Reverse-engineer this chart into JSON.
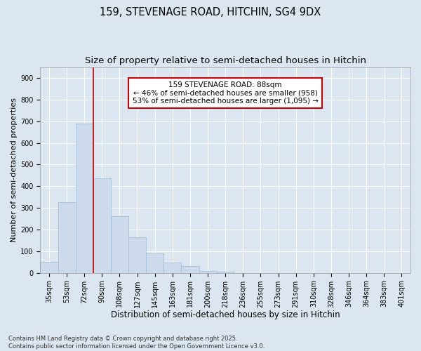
{
  "title1": "159, STEVENAGE ROAD, HITCHIN, SG4 9DX",
  "title2": "Size of property relative to semi-detached houses in Hitchin",
  "xlabel": "Distribution of semi-detached houses by size in Hitchin",
  "ylabel": "Number of semi-detached properties",
  "categories": [
    "35sqm",
    "53sqm",
    "72sqm",
    "90sqm",
    "108sqm",
    "127sqm",
    "145sqm",
    "163sqm",
    "181sqm",
    "200sqm",
    "218sqm",
    "236sqm",
    "255sqm",
    "273sqm",
    "291sqm",
    "310sqm",
    "328sqm",
    "346sqm",
    "364sqm",
    "383sqm",
    "401sqm"
  ],
  "values": [
    50,
    325,
    690,
    435,
    260,
    165,
    90,
    47,
    30,
    10,
    5,
    0,
    0,
    0,
    0,
    0,
    0,
    0,
    0,
    0,
    0
  ],
  "bar_color": "#ccdaeb",
  "bar_edge_color": "#a8c0d8",
  "vline_color": "#cc0000",
  "vline_x": 2.5,
  "annotation_text": "159 STEVENAGE ROAD: 88sqm\n← 46% of semi-detached houses are smaller (958)\n53% of semi-detached houses are larger (1,095) →",
  "annotation_box_facecolor": "#ffffff",
  "annotation_box_edgecolor": "#cc0000",
  "ylim_max": 950,
  "yticks": [
    0,
    100,
    200,
    300,
    400,
    500,
    600,
    700,
    800,
    900
  ],
  "background_color": "#dce6f0",
  "plot_background": "#dce6f0",
  "grid_color": "#ffffff",
  "footnote": "Contains HM Land Registry data © Crown copyright and database right 2025.\nContains public sector information licensed under the Open Government Licence v3.0.",
  "title1_fontsize": 10.5,
  "title2_fontsize": 9.5,
  "xlabel_fontsize": 8.5,
  "ylabel_fontsize": 8,
  "tick_fontsize": 7,
  "annotation_fontsize": 7.5,
  "footnote_fontsize": 6
}
